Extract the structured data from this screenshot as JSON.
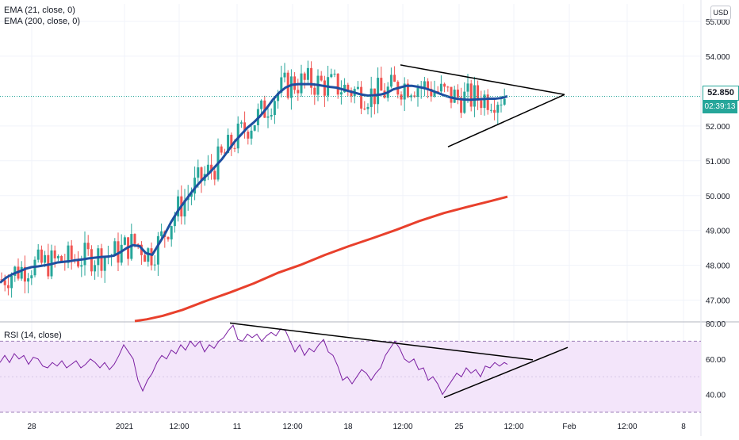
{
  "legend": {
    "ema21": "EMA (21, close, 0)",
    "ema200": "EMA (200, close, 0)",
    "rsi": "RSI (14, close)"
  },
  "price_scale": {
    "currency": "USD",
    "ticks": [
      "55.000",
      "54.000",
      "52.000",
      "51.000",
      "50.000",
      "49.000",
      "48.000",
      "47.000"
    ],
    "last_price": "52.850",
    "countdown": "02:39:13"
  },
  "rsi_scale": {
    "ticks": [
      "80.00",
      "60.00",
      "40.00"
    ]
  },
  "time_axis": {
    "labels": [
      "28",
      "2021",
      "12:00",
      "11",
      "12:00",
      "18",
      "12:00",
      "25",
      "12:00",
      "Feb",
      "12:00",
      "8"
    ]
  },
  "colors": {
    "up": "#26a69a",
    "down": "#ef5350",
    "ema21": "#1e4fa0",
    "ema200": "#e8402c",
    "rsi_line": "#7b1fa2",
    "rsi_band": "#f3e5fa",
    "trendline": "#000000",
    "last_price_line": "#26a69a"
  },
  "chart_data": [
    {
      "type": "candlestick",
      "price_range": [
        46.4,
        55.5
      ],
      "series": [
        {
          "name": "EMA (21, close, 0)",
          "points": [
            [
              0,
              47.5
            ],
            [
              8,
              47.65
            ],
            [
              16,
              47.75
            ],
            [
              24,
              47.82
            ],
            [
              32,
              47.9
            ],
            [
              40,
              47.95
            ],
            [
              48,
              47.97
            ],
            [
              56,
              48
            ],
            [
              64,
              48.03
            ],
            [
              72,
              48.08
            ],
            [
              80,
              48.1
            ],
            [
              88,
              48.12
            ],
            [
              96,
              48.15
            ],
            [
              104,
              48.17
            ],
            [
              112,
              48.2
            ],
            [
              120,
              48.22
            ],
            [
              128,
              48.24
            ],
            [
              136,
              48.25
            ],
            [
              144,
              48.28
            ],
            [
              152,
              48.38
            ],
            [
              160,
              48.5
            ],
            [
              168,
              48.58
            ],
            [
              176,
              48.55
            ],
            [
              184,
              48.35
            ],
            [
              192,
              48.3
            ],
            [
              200,
              48.6
            ],
            [
              208,
              48.9
            ],
            [
              216,
              49.25
            ],
            [
              224,
              49.55
            ],
            [
              232,
              49.8
            ],
            [
              240,
              50.05
            ],
            [
              248,
              50.28
            ],
            [
              256,
              50.48
            ],
            [
              264,
              50.65
            ],
            [
              272,
              50.85
            ],
            [
              280,
              51.05
            ],
            [
              288,
              51.3
            ],
            [
              296,
              51.55
            ],
            [
              304,
              51.75
            ],
            [
              312,
              51.95
            ],
            [
              320,
              52.1
            ],
            [
              328,
              52.28
            ],
            [
              336,
              52.5
            ],
            [
              344,
              52.75
            ],
            [
              352,
              52.95
            ],
            [
              360,
              53.1
            ],
            [
              368,
              53.18
            ],
            [
              376,
              53.2
            ],
            [
              384,
              53.2
            ],
            [
              392,
              53.2
            ],
            [
              400,
              53.18
            ],
            [
              408,
              53.15
            ],
            [
              416,
              53.12
            ],
            [
              424,
              53.1
            ],
            [
              432,
              53.05
            ],
            [
              440,
              53
            ],
            [
              448,
              52.95
            ],
            [
              456,
              52.9
            ],
            [
              464,
              52.87
            ],
            [
              472,
              52.88
            ],
            [
              480,
              52.9
            ],
            [
              488,
              52.95
            ],
            [
              496,
              53.05
            ],
            [
              504,
              53.1
            ],
            [
              512,
              53.15
            ],
            [
              520,
              53.15
            ],
            [
              528,
              53.12
            ],
            [
              536,
              53.08
            ],
            [
              544,
              53.02
            ],
            [
              552,
              52.95
            ],
            [
              560,
              52.88
            ],
            [
              568,
              52.82
            ],
            [
              576,
              52.78
            ],
            [
              584,
              52.76
            ],
            [
              592,
              52.75
            ],
            [
              600,
              52.76
            ],
            [
              608,
              52.77
            ],
            [
              616,
              52.78
            ],
            [
              624,
              52.78
            ],
            [
              632,
              52.8
            ],
            [
              640,
              52.85
            ]
          ]
        },
        {
          "name": "EMA (200, close, 0)",
          "points": [
            [
              170,
              46.4
            ],
            [
              185,
              46.45
            ],
            [
              205,
              46.55
            ],
            [
              230,
              46.72
            ],
            [
              260,
              46.98
            ],
            [
              290,
              47.22
            ],
            [
              320,
              47.48
            ],
            [
              350,
              47.78
            ],
            [
              380,
              48.02
            ],
            [
              410,
              48.3
            ],
            [
              440,
              48.55
            ],
            [
              470,
              48.78
            ],
            [
              500,
              49.02
            ],
            [
              530,
              49.28
            ],
            [
              560,
              49.5
            ],
            [
              590,
              49.68
            ],
            [
              620,
              49.85
            ],
            [
              640,
              49.97
            ]
          ]
        }
      ]
    },
    {
      "type": "line",
      "ylim": [
        30,
        80
      ],
      "series": [
        {
          "name": "RSI (14, close)",
          "points": [
            [
              0,
              58
            ],
            [
              6,
              62
            ],
            [
              12,
              58
            ],
            [
              18,
              63
            ],
            [
              24,
              60
            ],
            [
              30,
              62
            ],
            [
              36,
              57
            ],
            [
              42,
              61
            ],
            [
              48,
              60
            ],
            [
              54,
              56
            ],
            [
              60,
              55
            ],
            [
              66,
              58
            ],
            [
              72,
              56
            ],
            [
              78,
              59
            ],
            [
              84,
              55
            ],
            [
              90,
              57
            ],
            [
              96,
              59
            ],
            [
              102,
              55
            ],
            [
              108,
              57
            ],
            [
              114,
              60
            ],
            [
              120,
              58
            ],
            [
              126,
              55
            ],
            [
              132,
              58
            ],
            [
              138,
              54
            ],
            [
              144,
              57
            ],
            [
              150,
              62
            ],
            [
              156,
              68
            ],
            [
              162,
              64
            ],
            [
              168,
              60
            ],
            [
              174,
              48
            ],
            [
              180,
              42
            ],
            [
              186,
              48
            ],
            [
              192,
              52
            ],
            [
              198,
              58
            ],
            [
              204,
              62
            ],
            [
              210,
              60
            ],
            [
              216,
              65
            ],
            [
              222,
              63
            ],
            [
              228,
              68
            ],
            [
              234,
              65
            ],
            [
              240,
              70
            ],
            [
              246,
              67
            ],
            [
              252,
              70
            ],
            [
              258,
              64
            ],
            [
              264,
              68
            ],
            [
              270,
              66
            ],
            [
              276,
              70
            ],
            [
              282,
              72
            ],
            [
              288,
              76
            ],
            [
              294,
              79
            ],
            [
              300,
              71
            ],
            [
              306,
              70
            ],
            [
              312,
              74
            ],
            [
              318,
              72
            ],
            [
              324,
              74
            ],
            [
              330,
              70
            ],
            [
              336,
              73
            ],
            [
              342,
              75
            ],
            [
              348,
              73
            ],
            [
              354,
              77
            ],
            [
              360,
              76
            ],
            [
              366,
              70
            ],
            [
              372,
              64
            ],
            [
              378,
              68
            ],
            [
              384,
              62
            ],
            [
              390,
              66
            ],
            [
              396,
              64
            ],
            [
              402,
              68
            ],
            [
              408,
              71
            ],
            [
              414,
              64
            ],
            [
              420,
              62
            ],
            [
              426,
              56
            ],
            [
              432,
              48
            ],
            [
              438,
              50
            ],
            [
              444,
              46
            ],
            [
              450,
              50
            ],
            [
              456,
              54
            ],
            [
              462,
              52
            ],
            [
              468,
              48
            ],
            [
              474,
              52
            ],
            [
              480,
              55
            ],
            [
              486,
              62
            ],
            [
              492,
              66
            ],
            [
              498,
              70
            ],
            [
              504,
              66
            ],
            [
              510,
              60
            ],
            [
              516,
              58
            ],
            [
              522,
              60
            ],
            [
              528,
              54
            ],
            [
              534,
              55
            ],
            [
              540,
              48
            ],
            [
              546,
              50
            ],
            [
              552,
              46
            ],
            [
              558,
              40
            ],
            [
              564,
              44
            ],
            [
              570,
              48
            ],
            [
              576,
              52
            ],
            [
              582,
              50
            ],
            [
              588,
              55
            ],
            [
              594,
              52
            ],
            [
              600,
              54
            ],
            [
              606,
              50
            ],
            [
              612,
              56
            ],
            [
              618,
              55
            ],
            [
              624,
              58
            ],
            [
              630,
              56
            ],
            [
              636,
              58
            ],
            [
              640,
              57
            ]
          ]
        }
      ],
      "trendlines": [
        {
          "points": [
            [
              290,
              80.2
            ],
            [
              672,
              59.5
            ]
          ]
        },
        {
          "points": [
            [
              560,
              38.3
            ],
            [
              716,
              66.5
            ]
          ]
        }
      ]
    }
  ]
}
